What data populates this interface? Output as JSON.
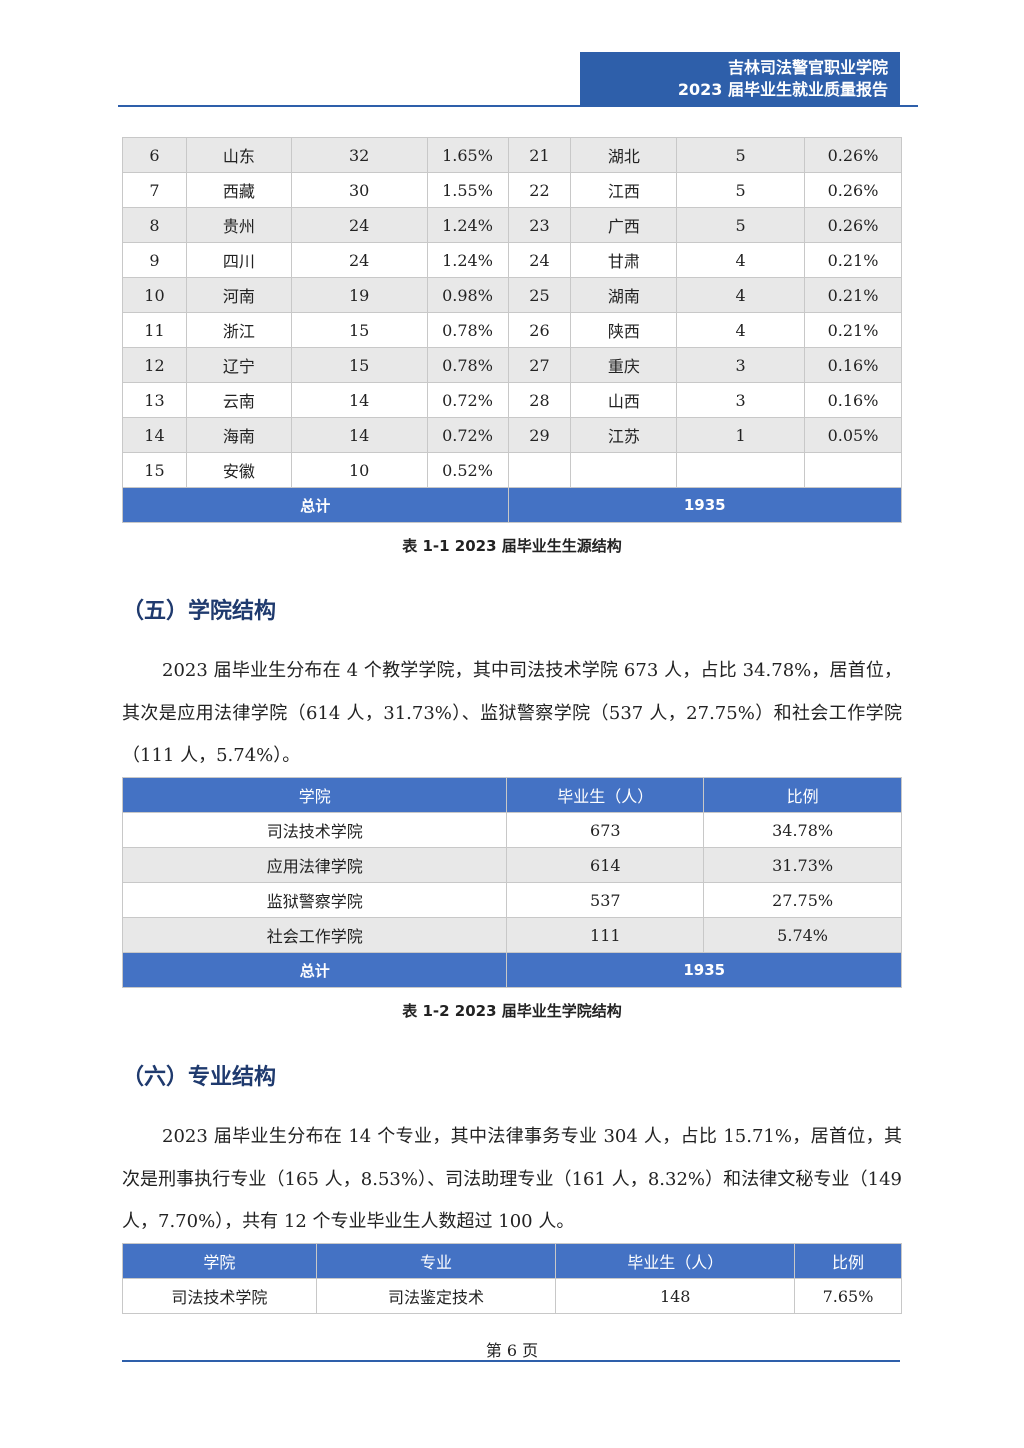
{
  "header": {
    "line1": "吉林司法警官职业学院",
    "line2": "2023 届毕业生就业质量报告"
  },
  "colors": {
    "header": "#2e5faa",
    "table_header": "#4472c4",
    "heading": "#1f3a6e",
    "row_shade": "#e8e8e8"
  },
  "table1": {
    "rows": [
      [
        "6",
        "山东",
        "32",
        "1.65%",
        "21",
        "湖北",
        "5",
        "0.26%"
      ],
      [
        "7",
        "西藏",
        "30",
        "1.55%",
        "22",
        "江西",
        "5",
        "0.26%"
      ],
      [
        "8",
        "贵州",
        "24",
        "1.24%",
        "23",
        "广西",
        "5",
        "0.26%"
      ],
      [
        "9",
        "四川",
        "24",
        "1.24%",
        "24",
        "甘肃",
        "4",
        "0.21%"
      ],
      [
        "10",
        "河南",
        "19",
        "0.98%",
        "25",
        "湖南",
        "4",
        "0.21%"
      ],
      [
        "11",
        "浙江",
        "15",
        "0.78%",
        "26",
        "陕西",
        "4",
        "0.21%"
      ],
      [
        "12",
        "辽宁",
        "15",
        "0.78%",
        "27",
        "重庆",
        "3",
        "0.16%"
      ],
      [
        "13",
        "云南",
        "14",
        "0.72%",
        "28",
        "山西",
        "3",
        "0.16%"
      ],
      [
        "14",
        "海南",
        "14",
        "0.72%",
        "29",
        "江苏",
        "1",
        "0.05%"
      ],
      [
        "15",
        "安徽",
        "10",
        "0.52%",
        "",
        "",
        "",
        ""
      ]
    ],
    "total_label": "总计",
    "total_value": "1935",
    "caption": "表 1-1 2023 届毕业生生源结构"
  },
  "section5": {
    "heading": "（五）学院结构",
    "paragraph": "2023 届毕业生分布在 4 个教学学院，其中司法技术学院 673 人，占比 34.78%，居首位，其次是应用法律学院（614 人，31.73%）、监狱警察学院（537 人，27.75%）和社会工作学院（111 人，5.74%）。"
  },
  "table2": {
    "headers": [
      "学院",
      "毕业生（人）",
      "比例"
    ],
    "rows": [
      [
        "司法技术学院",
        "673",
        "34.78%"
      ],
      [
        "应用法律学院",
        "614",
        "31.73%"
      ],
      [
        "监狱警察学院",
        "537",
        "27.75%"
      ],
      [
        "社会工作学院",
        "111",
        "5.74%"
      ]
    ],
    "total_label": "总计",
    "total_value": "1935",
    "caption": "表 1-2 2023 届毕业生学院结构"
  },
  "section6": {
    "heading": "（六）专业结构",
    "paragraph": "2023 届毕业生分布在 14 个专业，其中法律事务专业 304 人，占比 15.71%，居首位，其次是刑事执行专业（165 人，8.53%）、司法助理专业（161 人，8.32%）和法律文秘专业（149 人，7.70%），共有 12 个专业毕业生人数超过 100 人。"
  },
  "table3": {
    "headers": [
      "学院",
      "专业",
      "毕业生（人）",
      "比例"
    ],
    "rows": [
      [
        "司法技术学院",
        "司法鉴定技术",
        "148",
        "7.65%"
      ]
    ]
  },
  "footer": {
    "page": "第 6 页"
  }
}
